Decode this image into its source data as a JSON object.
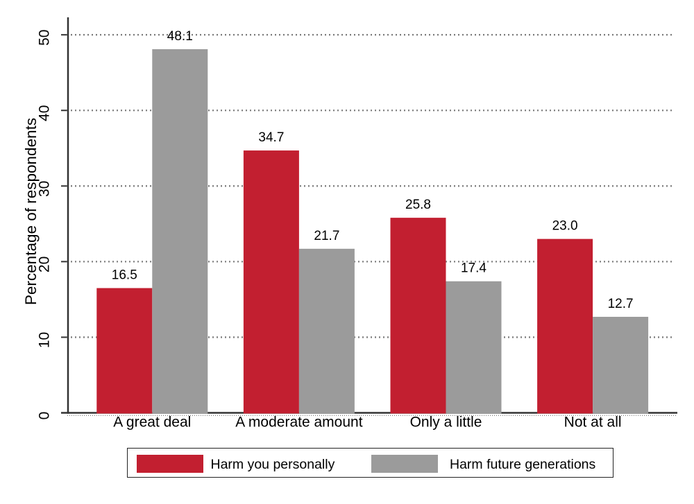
{
  "chart_data": {
    "type": "bar",
    "title": "",
    "ylabel": "Percentage of respondents",
    "xlabel": "",
    "categories": [
      "A great deal",
      "A moderate amount",
      "Only a little",
      "Not at all"
    ],
    "series": [
      {
        "name": "Harm you personally",
        "color": "#c21f30",
        "values": [
          16.5,
          34.7,
          25.8,
          23.0
        ],
        "value_labels": [
          "16.5",
          "34.7",
          "25.8",
          "23.0"
        ]
      },
      {
        "name": "Harm future generations",
        "color": "#9b9b9b",
        "values": [
          48.1,
          21.7,
          17.4,
          12.7
        ],
        "value_labels": [
          "48.1",
          "21.7",
          "17.4",
          "12.7"
        ]
      }
    ],
    "yticks": [
      0,
      10,
      20,
      30,
      40,
      50
    ],
    "ylim": [
      0,
      50
    ],
    "grid": "dotted-horizontal",
    "legend_position": "bottom"
  }
}
